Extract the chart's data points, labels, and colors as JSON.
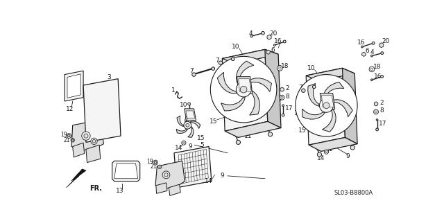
{
  "bg_color": "#ffffff",
  "watermark": "SL03-B8800A",
  "fig_width": 6.4,
  "fig_height": 3.19,
  "dpi": 100,
  "lc": "#1a1a1a",
  "tc": "#1a1a1a",
  "fc_light": "#f5f5f5",
  "fc_mid": "#e0e0e0",
  "fc_dark": "#c8c8c8"
}
